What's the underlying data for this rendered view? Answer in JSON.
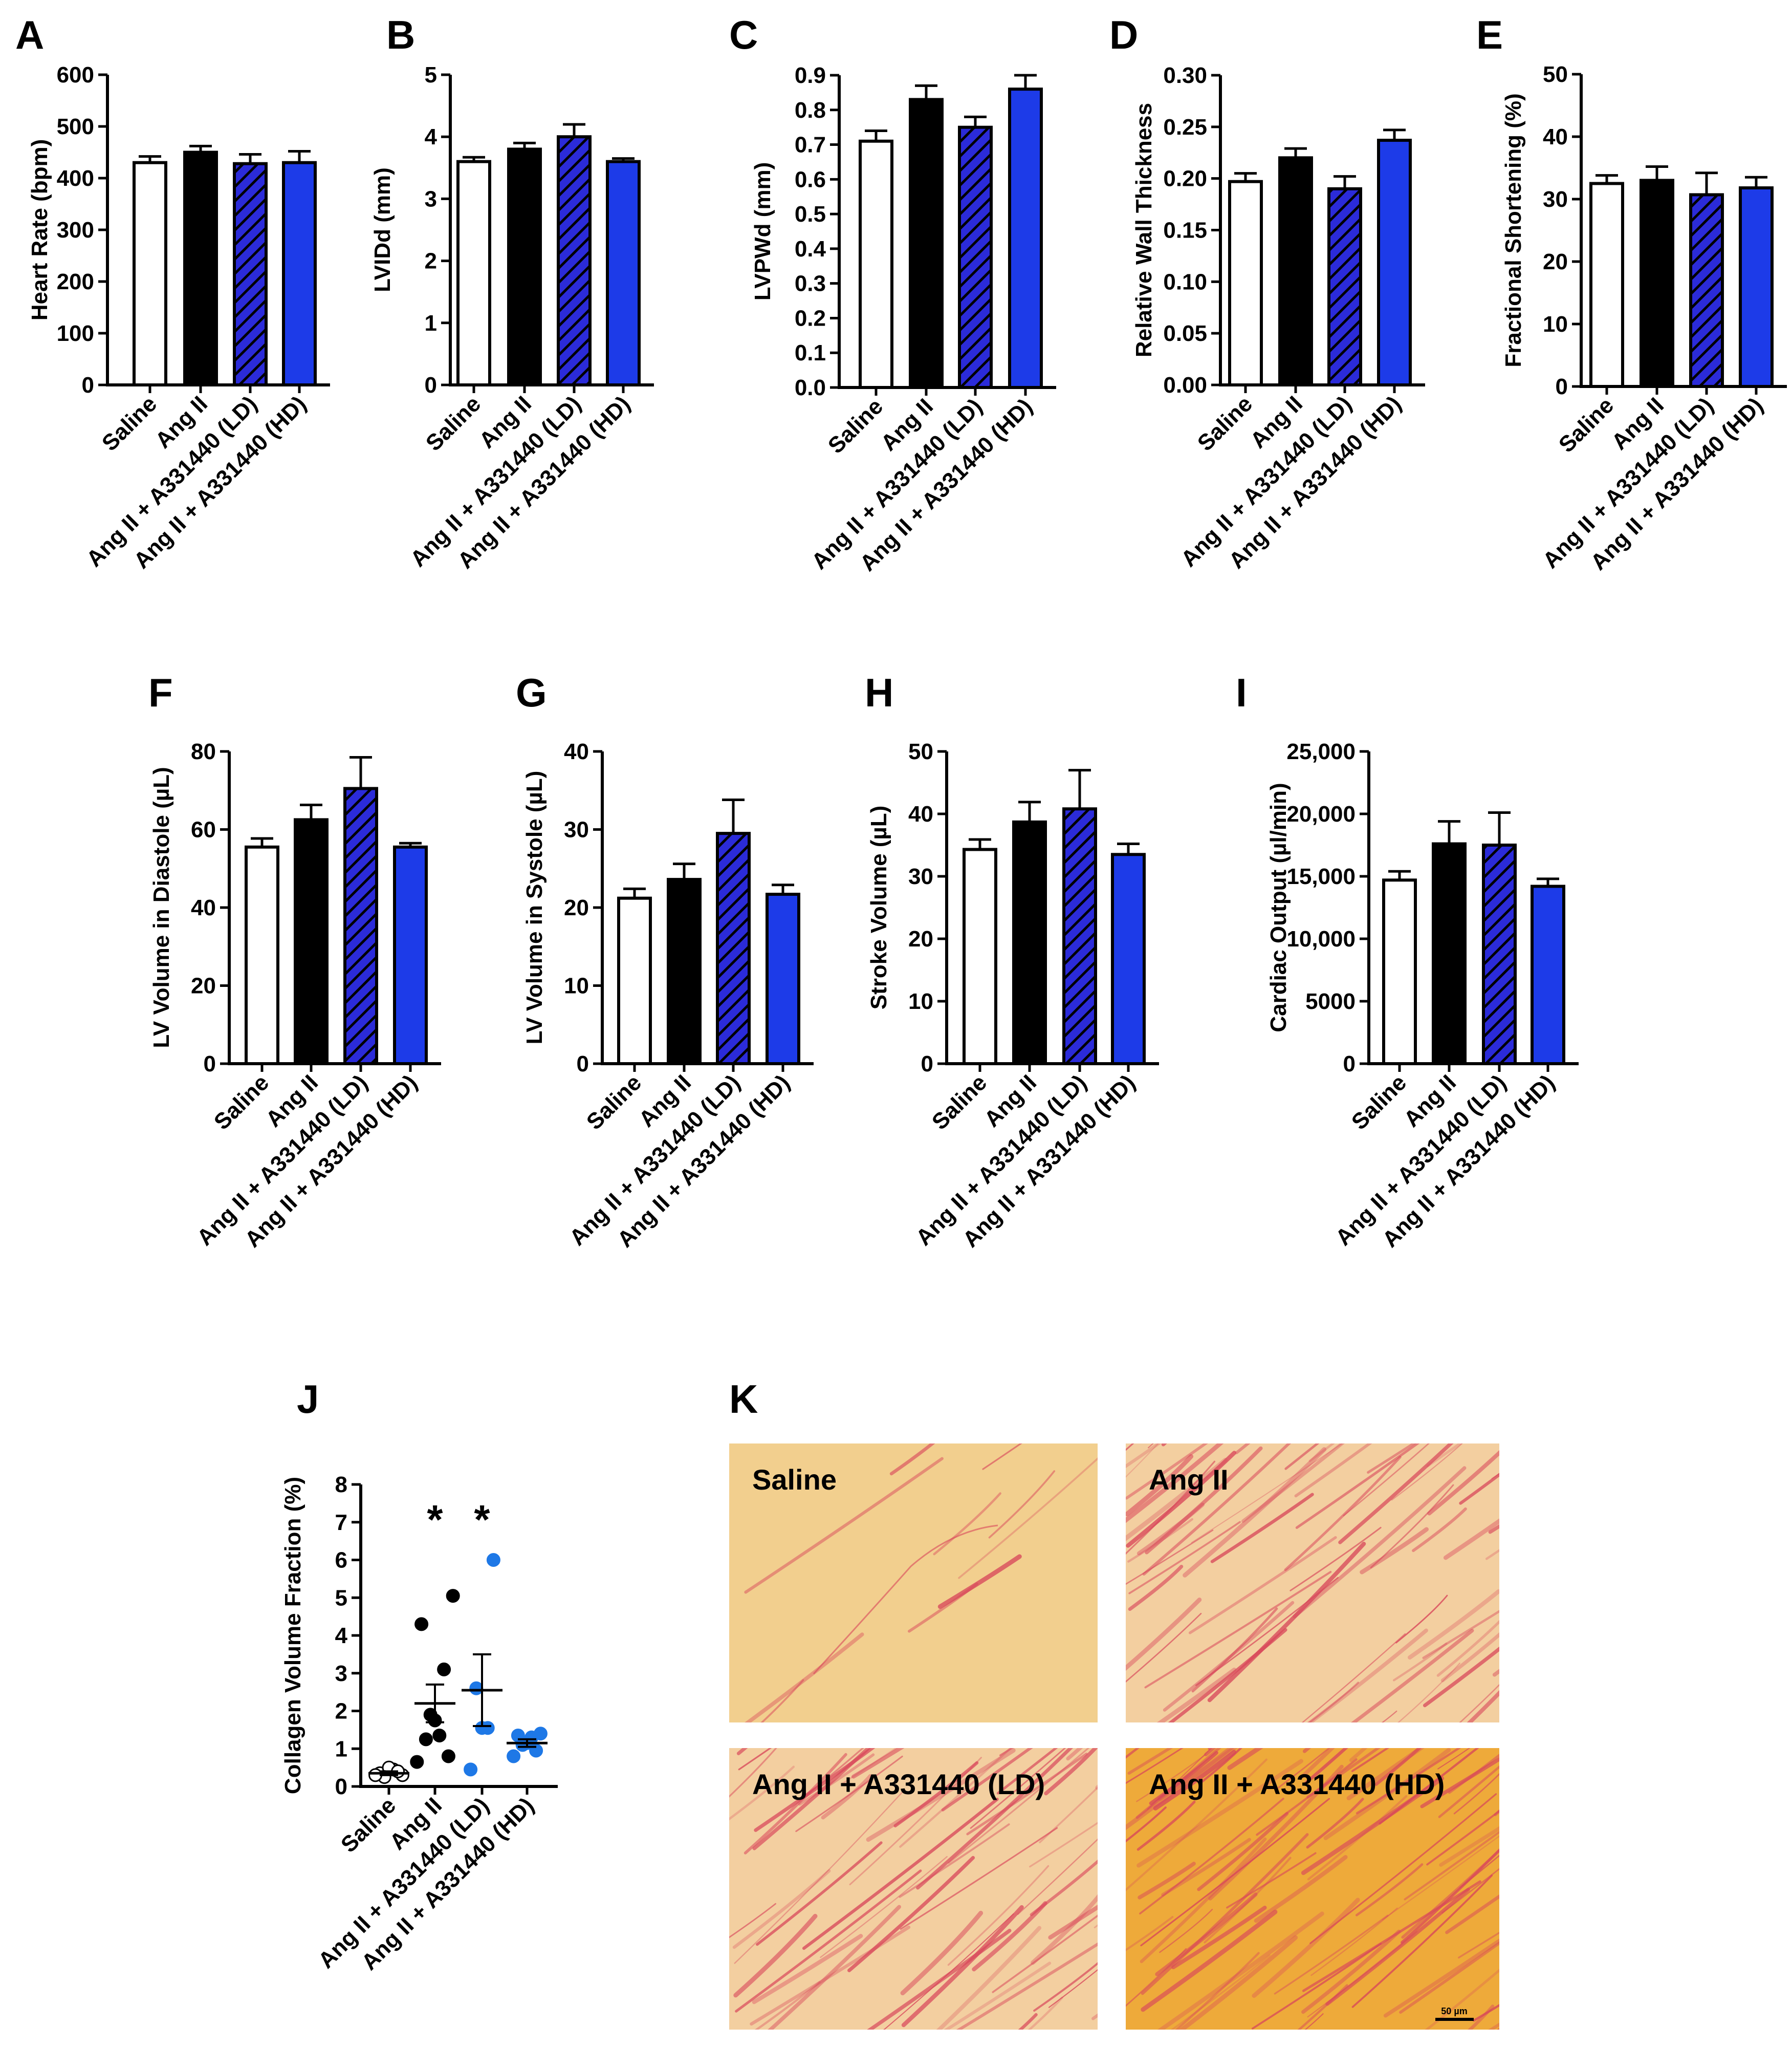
{
  "colors": {
    "saline": "#ffffff",
    "ang2": "#000000",
    "ld": "#2b2bd9",
    "hd": "#1d3be8",
    "dot_blue": "#1e78e6",
    "tissue_bg": "#f1cf8c",
    "fiber": "#d8465a"
  },
  "categories": [
    "Saline",
    "Ang II",
    "Ang II + A331440 (LD)",
    "Ang II + A331440 (HD)"
  ],
  "chart_data": [
    {
      "panel": "A",
      "type": "bar",
      "ylabel": "Heart Rate (bpm)",
      "ylim": [
        0,
        600
      ],
      "ticks": [
        0,
        100,
        200,
        300,
        400,
        500,
        600
      ],
      "tick_labels": [
        "0",
        "100",
        "200",
        "300",
        "400",
        "500",
        "600"
      ],
      "values": [
        430,
        450,
        428,
        430
      ],
      "errors": [
        12,
        12,
        18,
        22
      ]
    },
    {
      "panel": "B",
      "type": "bar",
      "ylabel": "LVIDd (mm)",
      "ylim": [
        0,
        5
      ],
      "ticks": [
        0,
        1,
        2,
        3,
        4,
        5
      ],
      "tick_labels": [
        "0",
        "1",
        "2",
        "3",
        "4",
        "5"
      ],
      "values": [
        3.6,
        3.8,
        4.0,
        3.6
      ],
      "errors": [
        0.07,
        0.1,
        0.2,
        0.05
      ]
    },
    {
      "panel": "C",
      "type": "bar",
      "ylabel": "LVPWd (mm)",
      "ylim": [
        0,
        0.9
      ],
      "ticks": [
        0,
        0.1,
        0.2,
        0.3,
        0.4,
        0.5,
        0.6,
        0.7,
        0.8,
        0.9
      ],
      "tick_labels": [
        "0.0",
        "0.1",
        "0.2",
        "0.3",
        "0.4",
        "0.5",
        "0.6",
        "0.7",
        "0.8",
        "0.9"
      ],
      "values": [
        0.71,
        0.83,
        0.75,
        0.86
      ],
      "errors": [
        0.03,
        0.04,
        0.03,
        0.04
      ]
    },
    {
      "panel": "D",
      "type": "bar",
      "ylabel": "Relative Wall Thickness",
      "ylim": [
        0,
        0.3
      ],
      "ticks": [
        0,
        0.05,
        0.1,
        0.15,
        0.2,
        0.25,
        0.3
      ],
      "tick_labels": [
        "0.00",
        "0.05",
        "0.10",
        "0.15",
        "0.20",
        "0.25",
        "0.30"
      ],
      "values": [
        0.197,
        0.22,
        0.19,
        0.237
      ],
      "errors": [
        0.008,
        0.009,
        0.012,
        0.01
      ]
    },
    {
      "panel": "E",
      "type": "bar",
      "ylabel": "Fractional Shortening (%)",
      "ylim": [
        0,
        50
      ],
      "ticks": [
        0,
        10,
        20,
        30,
        40,
        50
      ],
      "tick_labels": [
        "0",
        "10",
        "20",
        "30",
        "40",
        "50"
      ],
      "values": [
        32.5,
        33,
        30.7,
        31.8
      ],
      "errors": [
        1.3,
        2.2,
        3.5,
        1.7
      ]
    },
    {
      "panel": "F",
      "type": "bar",
      "ylabel": "LV Volume in Diastole (µL)",
      "ylim": [
        0,
        80
      ],
      "ticks": [
        0,
        20,
        40,
        60,
        80
      ],
      "tick_labels": [
        "0",
        "20",
        "40",
        "60",
        "80"
      ],
      "values": [
        55.5,
        62.5,
        70.5,
        55.5
      ],
      "errors": [
        2.2,
        3.8,
        8,
        1
      ]
    },
    {
      "panel": "G",
      "type": "bar",
      "ylabel": "LV Volume in Systole (µL)",
      "ylim": [
        0,
        40
      ],
      "ticks": [
        0,
        10,
        20,
        30,
        40
      ],
      "tick_labels": [
        "0",
        "10",
        "20",
        "30",
        "40"
      ],
      "values": [
        21.2,
        23.6,
        29.5,
        21.7
      ],
      "errors": [
        1.2,
        2,
        4.3,
        1.2
      ]
    },
    {
      "panel": "H",
      "type": "bar",
      "ylabel": "Stroke Volume (µL)",
      "ylim": [
        0,
        50
      ],
      "ticks": [
        0,
        10,
        20,
        30,
        40,
        50
      ],
      "tick_labels": [
        "0",
        "10",
        "20",
        "30",
        "40",
        "50"
      ],
      "values": [
        34.3,
        38.7,
        40.8,
        33.5
      ],
      "errors": [
        1.6,
        3.2,
        6.2,
        1.7
      ]
    },
    {
      "panel": "I",
      "type": "bar",
      "ylabel": "Cardiac Output (µl/min)",
      "ylim": [
        0,
        25000
      ],
      "ticks": [
        0,
        5000,
        10000,
        15000,
        20000,
        25000
      ],
      "tick_labels": [
        "0",
        "5000",
        "10,000",
        "15,000",
        "20,000",
        "25,000"
      ],
      "values": [
        14700,
        17600,
        17500,
        14200
      ],
      "errors": [
        700,
        1800,
        2600,
        600
      ]
    },
    {
      "panel": "J",
      "type": "scatter",
      "ylabel": "Collagen Volume Fraction (%)",
      "ylim": [
        0,
        8
      ],
      "ticks": [
        0,
        1,
        2,
        3,
        4,
        5,
        6,
        7,
        8
      ],
      "tick_labels": [
        "0",
        "1",
        "2",
        "3",
        "4",
        "5",
        "6",
        "7",
        "8"
      ],
      "points": [
        [
          0.3,
          0.35,
          0.45,
          0.5,
          0.25,
          0.4,
          0.3
        ],
        [
          5.05,
          4.3,
          3.1,
          1.9,
          1.75,
          1.35,
          1.25,
          0.8,
          0.65
        ],
        [
          6.0,
          2.6,
          1.55,
          1.55,
          0.45
        ],
        [
          1.4,
          1.35,
          1.3,
          1.15,
          1.1,
          0.95,
          0.8
        ]
      ],
      "means": [
        0.35,
        2.2,
        2.55,
        1.15
      ],
      "sem": [
        0.05,
        0.5,
        0.95,
        0.1
      ],
      "significance": [
        "",
        "*",
        "*",
        ""
      ]
    }
  ],
  "histology": {
    "panel": "K",
    "images": [
      {
        "label": "Saline",
        "density": 0.08
      },
      {
        "label": "Ang II",
        "density": 0.55
      },
      {
        "label": "Ang II + A331440 (LD)",
        "density": 0.5
      },
      {
        "label": "Ang II + A331440 (HD)",
        "density": 0.75
      }
    ],
    "scale_bar_label": "50 µm"
  }
}
